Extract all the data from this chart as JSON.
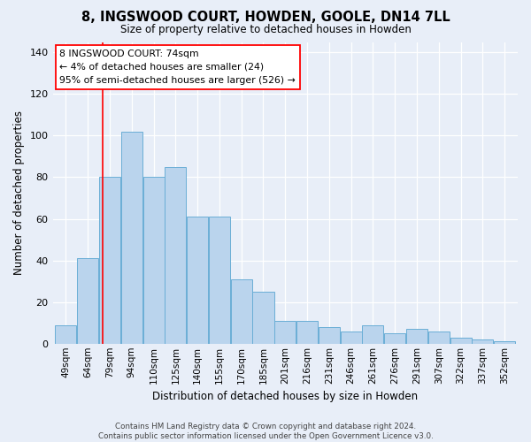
{
  "title": "8, INGSWOOD COURT, HOWDEN, GOOLE, DN14 7LL",
  "subtitle": "Size of property relative to detached houses in Howden",
  "xlabel": "Distribution of detached houses by size in Howden",
  "ylabel": "Number of detached properties",
  "categories": [
    "49sqm",
    "64sqm",
    "79sqm",
    "94sqm",
    "110sqm",
    "125sqm",
    "140sqm",
    "155sqm",
    "170sqm",
    "185sqm",
    "201sqm",
    "216sqm",
    "231sqm",
    "246sqm",
    "261sqm",
    "276sqm",
    "291sqm",
    "307sqm",
    "322sqm",
    "337sqm",
    "352sqm"
  ],
  "values": [
    9,
    41,
    80,
    102,
    80,
    85,
    61,
    61,
    31,
    25,
    11,
    11,
    8,
    6,
    9,
    5,
    7,
    6,
    3,
    2,
    1
  ],
  "bar_color": "#bad4ed",
  "bar_edge_color": "#6aaed6",
  "background_color": "#e8eef8",
  "grid_color": "#ffffff",
  "annotation_line1": "8 INGSWOOD COURT: 74sqm",
  "annotation_line2": "← 4% of detached houses are smaller (24)",
  "annotation_line3": "95% of semi-detached houses are larger (526) →",
  "redline_index": 1.67,
  "ylim": [
    0,
    145
  ],
  "yticks": [
    0,
    20,
    40,
    60,
    80,
    100,
    120,
    140
  ],
  "footer": "Contains HM Land Registry data © Crown copyright and database right 2024.\nContains public sector information licensed under the Open Government Licence v3.0."
}
